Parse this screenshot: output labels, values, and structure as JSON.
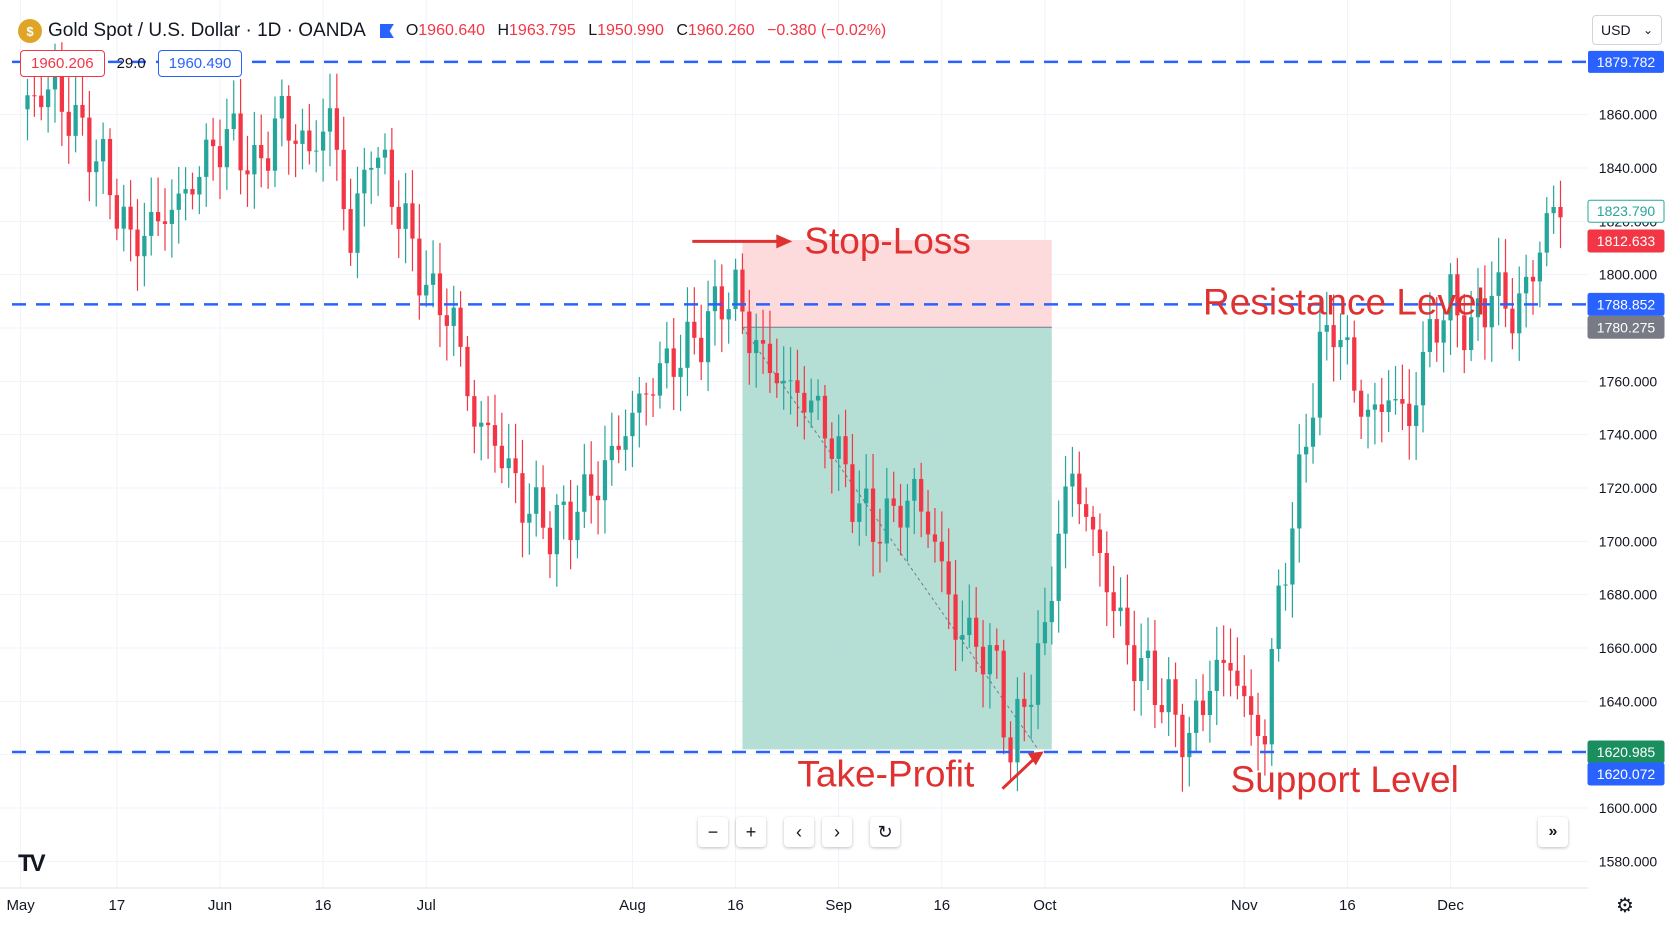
{
  "header": {
    "title": "Gold Spot / U.S. Dollar · 1D · OANDA",
    "open_label": "O",
    "open": "1960.640",
    "high_label": "H",
    "high": "1963.795",
    "low_label": "L",
    "low": "1950.990",
    "close_label": "C",
    "close": "1960.260",
    "change": "−0.380 (−0.02%)",
    "sell_price": "1960.206",
    "spread": "29.0",
    "buy_price": "1960.490",
    "currency": "USD"
  },
  "icons": {
    "logo": "gold-coin-icon",
    "flag": "flag-icon",
    "dropdown": "chevron-down-icon",
    "zoom_out": "minus-icon",
    "zoom_in": "plus-icon",
    "scroll_left": "chevron-left-icon",
    "scroll_right": "chevron-right-icon",
    "reset": "reset-icon",
    "go_latest": "double-chevron-right-icon",
    "settings": "gear-icon",
    "brand": "tradingview-logo"
  },
  "nav_glyphs": {
    "minus": "−",
    "plus": "+",
    "left": "‹",
    "right": "›",
    "reset": "↻",
    "latest": "»",
    "gear": "⚙",
    "brand": "TV",
    "caret": "⌄"
  },
  "colors": {
    "up": "#26a69a",
    "down": "#f23645",
    "level": "#2962ff",
    "stop_zone": "#fdd3d6",
    "target_zone": "#a8d9ce",
    "annotation": "#e03131"
  },
  "chart_data": {
    "type": "candlestick",
    "y_ticks": [
      1580,
      1600,
      1620,
      1640,
      1660,
      1680,
      1700,
      1720,
      1740,
      1760,
      1780,
      1800,
      1820,
      1840,
      1860
    ],
    "y_tick_labels": [
      "1580.000",
      "1600.000",
      "1620.000",
      "1640.000",
      "1660.000",
      "1680.000",
      "1700.000",
      "1720.000",
      "1740.000",
      "1760.000",
      "1780.000",
      "1800.000",
      "1820.000",
      "1840.000",
      "1860.000"
    ],
    "ylim": [
      1570,
      1888
    ],
    "x_labels": [
      "May",
      "17",
      "Jun",
      "16",
      "Jul",
      "Aug",
      "16",
      "Sep",
      "16",
      "Oct",
      "Nov",
      "16",
      "Dec"
    ],
    "x_label_index": [
      0,
      14,
      29,
      44,
      59,
      89,
      104,
      119,
      134,
      149,
      178,
      193,
      208
    ],
    "xlim": [
      -3,
      228
    ],
    "ohlc_anchors": [
      [
        0,
        1862
      ],
      [
        4,
        1870
      ],
      [
        8,
        1857
      ],
      [
        12,
        1840
      ],
      [
        16,
        1812
      ],
      [
        20,
        1820
      ],
      [
        24,
        1830
      ],
      [
        28,
        1848
      ],
      [
        31,
        1852
      ],
      [
        34,
        1838
      ],
      [
        38,
        1860
      ],
      [
        42,
        1845
      ],
      [
        45,
        1860
      ],
      [
        48,
        1812
      ],
      [
        51,
        1849
      ],
      [
        55,
        1825
      ],
      [
        59,
        1795
      ],
      [
        63,
        1783
      ],
      [
        66,
        1745
      ],
      [
        69,
        1738
      ],
      [
        73,
        1715
      ],
      [
        77,
        1705
      ],
      [
        80,
        1710
      ],
      [
        84,
        1722
      ],
      [
        87,
        1737
      ],
      [
        90,
        1752
      ],
      [
        93,
        1764
      ],
      [
        96,
        1770
      ],
      [
        99,
        1778
      ],
      [
        102,
        1791
      ],
      [
        104,
        1793
      ],
      [
        106,
        1778
      ],
      [
        109,
        1765
      ],
      [
        112,
        1757
      ],
      [
        115,
        1752
      ],
      [
        118,
        1738
      ],
      [
        121,
        1718
      ],
      [
        124,
        1705
      ],
      [
        127,
        1710
      ],
      [
        130,
        1718
      ],
      [
        133,
        1700
      ],
      [
        136,
        1668
      ],
      [
        139,
        1662
      ],
      [
        142,
        1652
      ],
      [
        144,
        1620
      ],
      [
        146,
        1640
      ],
      [
        149,
        1664
      ],
      [
        151,
        1705
      ],
      [
        153,
        1725
      ],
      [
        155,
        1710
      ],
      [
        158,
        1685
      ],
      [
        161,
        1660
      ],
      [
        164,
        1650
      ],
      [
        167,
        1638
      ],
      [
        170,
        1625
      ],
      [
        173,
        1648
      ],
      [
        176,
        1655
      ],
      [
        179,
        1632
      ],
      [
        181,
        1628
      ],
      [
        183,
        1680
      ],
      [
        185,
        1705
      ],
      [
        187,
        1740
      ],
      [
        189,
        1770
      ],
      [
        191,
        1783
      ],
      [
        194,
        1760
      ],
      [
        196,
        1745
      ],
      [
        199,
        1755
      ],
      [
        202,
        1745
      ],
      [
        205,
        1778
      ],
      [
        208,
        1790
      ],
      [
        211,
        1778
      ],
      [
        214,
        1795
      ],
      [
        217,
        1785
      ],
      [
        220,
        1800
      ],
      [
        222,
        1822
      ],
      [
        224,
        1822
      ]
    ],
    "levels": [
      {
        "value": 1879.782,
        "label": "1879.782"
      },
      {
        "value": 1788.852,
        "label": "1788.852"
      },
      {
        "value": 1620.985,
        "label": "1620.985"
      }
    ],
    "price_tags": [
      {
        "value": 1823.79,
        "label": "1823.790",
        "style": "outline-green"
      },
      {
        "value": 1812.633,
        "label": "1812.633",
        "style": "red"
      },
      {
        "value": 1788.852,
        "label": "1788.852",
        "style": "blue"
      },
      {
        "value": 1780.275,
        "label": "1780.275",
        "style": "gray"
      },
      {
        "value": 1620.985,
        "label": "1620.985",
        "style": "green"
      },
      {
        "value": 1620.072,
        "label": "1620.072",
        "style": "blue"
      }
    ],
    "position": {
      "side": "short",
      "entry": 1780.275,
      "stop": 1813,
      "target": 1622,
      "start_index": 105,
      "end_index": 150
    },
    "annotations": [
      {
        "text": "Stop-Loss",
        "price": 1808,
        "index": 114
      },
      {
        "text": "Resistance Level",
        "price": 1785,
        "index": 172
      },
      {
        "text": "Take-Profit",
        "price": 1608,
        "index": 113
      },
      {
        "text": "Support Level",
        "price": 1606,
        "index": 176
      }
    ]
  }
}
